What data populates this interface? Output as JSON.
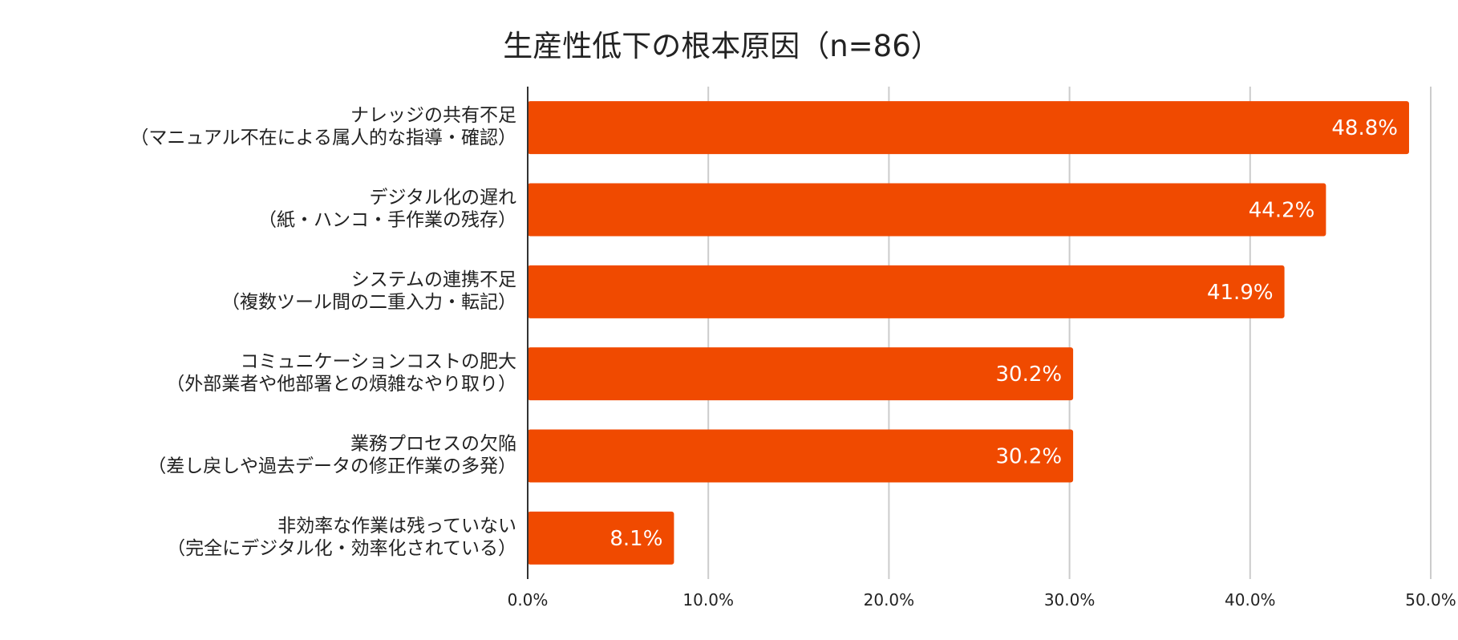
{
  "chart_data": {
    "type": "bar",
    "orientation": "horizontal",
    "title": "生産性低下の根本原因（n=86）",
    "xlabel": "",
    "ylabel": "",
    "xlim": [
      0,
      50
    ],
    "ticks": [
      "0.0%",
      "10.0%",
      "20.0%",
      "30.0%",
      "40.0%",
      "50.0%"
    ],
    "grid": true,
    "bar_color": "#F04A00",
    "categories": [
      [
        "ナレッジの共有不足",
        "（マニュアル不在による属人的な指導・確認）"
      ],
      [
        "デジタル化の遅れ",
        "（紙・ハンコ・手作業の残存）"
      ],
      [
        "システムの連携不足",
        "（複数ツール間の二重入力・転記）"
      ],
      [
        "コミュニケーションコストの肥大",
        "（外部業者や他部署との煩雑なやり取り）"
      ],
      [
        "業務プロセスの欠陥",
        "（差し戻しや過去データの修正作業の多発）"
      ],
      [
        "非効率な作業は残っていない",
        "（完全にデジタル化・効率化されている）"
      ]
    ],
    "values": [
      48.8,
      44.2,
      41.9,
      30.2,
      30.2,
      8.1
    ],
    "data_labels": [
      "48.8%",
      "44.2%",
      "41.9%",
      "30.2%",
      "30.2%",
      "8.1%"
    ]
  }
}
